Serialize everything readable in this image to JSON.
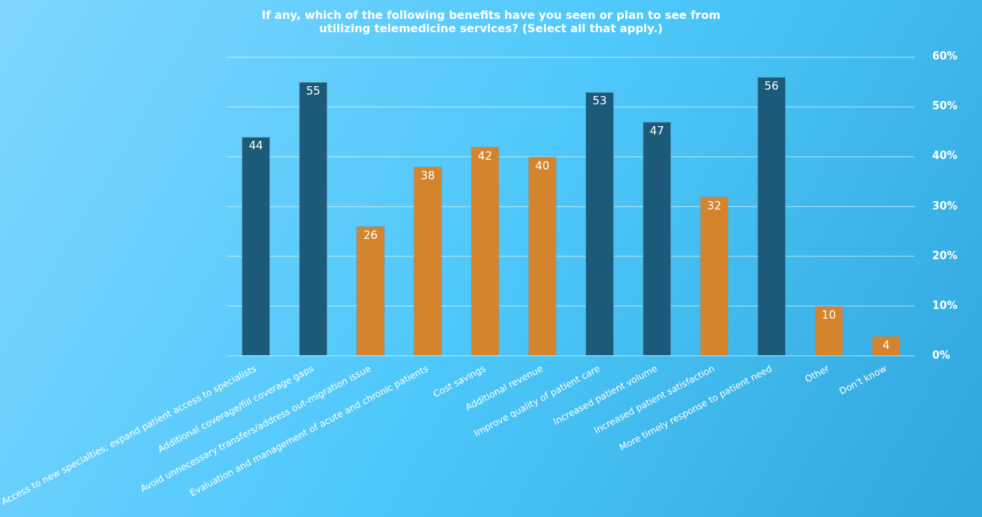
{
  "chart_data": {
    "type": "bar",
    "title": "If any, which of the following benefits have you seen or plan to see from utilizing telemedicine services? (Select all that apply.)",
    "categories": [
      "Access to new specialties; expand patient access to specialists",
      "Additional coverage/fill coverage gaps",
      "Avoid unnecessary transfers/address out-migration issue",
      "Evaluation and management of acute and chronic patients",
      "Cost savings",
      "Additional revenue",
      "Improve quality of patient care",
      "Increased patient volume",
      "Increased patient satisfaction",
      "More timely response to patient need",
      "Other",
      "Don’t know"
    ],
    "values": [
      44,
      55,
      26,
      38,
      42,
      40,
      53,
      47,
      32,
      56,
      10,
      4
    ],
    "colors": [
      "#1c5a7a",
      "#1c5a7a",
      "#d4842c",
      "#d4842c",
      "#d4842c",
      "#d4842c",
      "#1c5a7a",
      "#1c5a7a",
      "#d4842c",
      "#1c5a7a",
      "#d4842c",
      "#d4842c"
    ],
    "ylim": [
      0,
      60
    ],
    "yticks": [
      {
        "value": 0,
        "label": "0%"
      },
      {
        "value": 10,
        "label": "10%"
      },
      {
        "value": 20,
        "label": "20%"
      },
      {
        "value": 30,
        "label": "30%"
      },
      {
        "value": 40,
        "label": "40%"
      },
      {
        "value": 50,
        "label": "50%"
      },
      {
        "value": 60,
        "label": "60%"
      }
    ],
    "grid": "y",
    "data_labels": true,
    "legend": false
  }
}
